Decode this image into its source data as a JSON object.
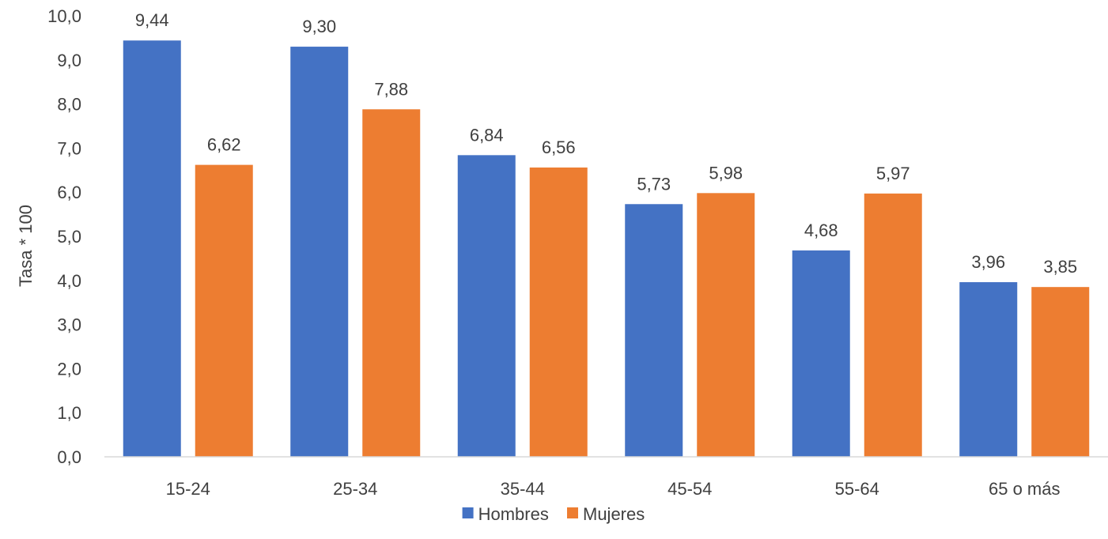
{
  "chart_data": {
    "type": "bar",
    "title": "",
    "xlabel": "",
    "ylabel": "Tasa * 100",
    "ylim": [
      0,
      10
    ],
    "y_ticks": [
      "0,0",
      "1,0",
      "2,0",
      "3,0",
      "4,0",
      "5,0",
      "6,0",
      "7,0",
      "8,0",
      "9,0",
      "10,0"
    ],
    "categories": [
      "15-24",
      "25-34",
      "35-44",
      "45-54",
      "55-64",
      "65 o más"
    ],
    "series": [
      {
        "name": "Hombres",
        "color": "#4472C4",
        "values": [
          9.44,
          9.3,
          6.84,
          5.73,
          4.68,
          3.96
        ],
        "labels": [
          "9,44",
          "9,30",
          "6,84",
          "5,73",
          "4,68",
          "3,96"
        ]
      },
      {
        "name": "Mujeres",
        "color": "#ED7D31",
        "values": [
          6.62,
          7.88,
          6.56,
          5.98,
          5.97,
          3.85
        ],
        "labels": [
          "6,62",
          "7,88",
          "6,56",
          "5,98",
          "5,97",
          "3,85"
        ]
      }
    ],
    "grid": false,
    "legend_position": "bottom"
  }
}
